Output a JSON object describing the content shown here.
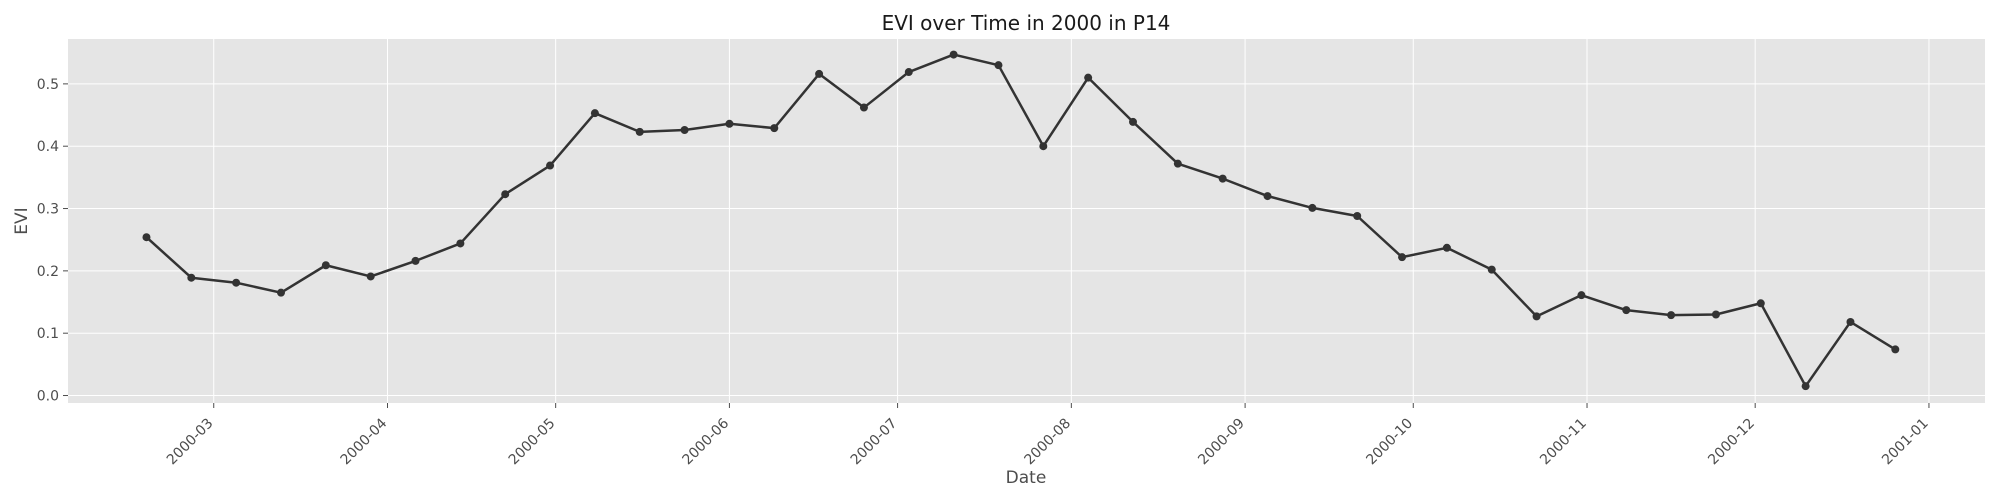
{
  "chart_data": {
    "type": "line",
    "title": "EVI over Time in 2000 in P14",
    "xlabel": "Date",
    "ylabel": "EVI",
    "grid": true,
    "ylim": [
      -0.012,
      0.572
    ],
    "xlim": [
      "2000-02-04",
      "2001-01-11"
    ],
    "yticks": [
      0.0,
      0.1,
      0.2,
      0.3,
      0.4,
      0.5
    ],
    "ytick_labels": [
      "0.0",
      "0.1",
      "0.2",
      "0.3",
      "0.4",
      "0.5"
    ],
    "xticks": [
      "2000-03-01",
      "2000-04-01",
      "2000-05-01",
      "2000-06-01",
      "2000-07-01",
      "2000-08-01",
      "2000-09-01",
      "2000-10-01",
      "2000-11-01",
      "2000-12-01",
      "2001-01-01"
    ],
    "xtick_labels": [
      "2000-03",
      "2000-04",
      "2000-05",
      "2000-06",
      "2000-07",
      "2000-08",
      "2000-09",
      "2000-10",
      "2000-11",
      "2000-12",
      "2001-01"
    ],
    "colors": {
      "line": "#333333",
      "background": "#e5e5e5",
      "grid": "#ffffff"
    },
    "series": [
      {
        "x": [
          "2000-02-18",
          "2000-02-26",
          "2000-03-05",
          "2000-03-13",
          "2000-03-21",
          "2000-03-29",
          "2000-04-06",
          "2000-04-14",
          "2000-04-22",
          "2000-04-30",
          "2000-05-08",
          "2000-05-16",
          "2000-05-24",
          "2000-06-01",
          "2000-06-09",
          "2000-06-17",
          "2000-06-25",
          "2000-07-03",
          "2000-07-11",
          "2000-07-19",
          "2000-07-27",
          "2000-08-04",
          "2000-08-12",
          "2000-08-20",
          "2000-08-28",
          "2000-09-05",
          "2000-09-13",
          "2000-09-21",
          "2000-09-29",
          "2000-10-07",
          "2000-10-15",
          "2000-10-23",
          "2000-10-31",
          "2000-11-08",
          "2000-11-16",
          "2000-11-24",
          "2000-12-02",
          "2000-12-10",
          "2000-12-18",
          "2000-12-26"
        ],
        "values": [
          0.254,
          0.189,
          0.181,
          0.165,
          0.209,
          0.191,
          0.216,
          0.244,
          0.323,
          0.369,
          0.453,
          0.423,
          0.426,
          0.436,
          0.429,
          0.516,
          0.462,
          0.519,
          0.547,
          0.53,
          0.4,
          0.51,
          0.439,
          0.372,
          0.348,
          0.32,
          0.301,
          0.288,
          0.222,
          0.237,
          0.202,
          0.127,
          0.161,
          0.137,
          0.129,
          0.13,
          0.148,
          0.015,
          0.118,
          0.074
        ]
      }
    ]
  }
}
